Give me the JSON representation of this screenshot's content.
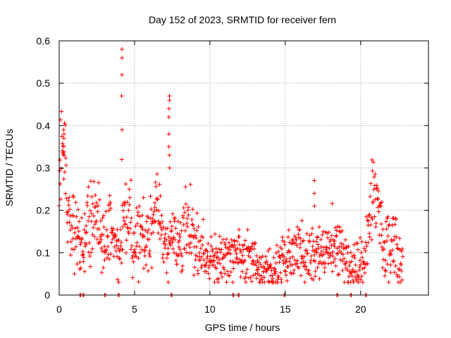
{
  "chart_data": {
    "type": "scatter",
    "title": "Day 152 of 2023, SRMTID for receiver fern",
    "xlabel": "GPS time / hours",
    "ylabel": "SRMTID / TECUs",
    "xlim": [
      0,
      24.5
    ],
    "ylim": [
      0,
      0.6
    ],
    "x_ticks": [
      0,
      5,
      10,
      15,
      20
    ],
    "x_tick_labels": [
      "0",
      "5",
      "10",
      "15",
      "20"
    ],
    "y_ticks": [
      0,
      0.1,
      0.2,
      0.3,
      0.4,
      0.5,
      0.6
    ],
    "y_tick_labels": [
      "0",
      "0.1",
      "0.2",
      "0.3",
      "0.4",
      "0.5",
      "0.6"
    ],
    "grid": true,
    "marker": "+",
    "series_color": "#ff0000",
    "trend": [
      [
        0.0,
        0.24
      ],
      [
        0.15,
        0.33
      ],
      [
        0.3,
        0.38
      ],
      [
        0.5,
        0.25
      ],
      [
        0.8,
        0.16
      ],
      [
        1.2,
        0.15
      ],
      [
        1.6,
        0.11
      ],
      [
        2.0,
        0.17
      ],
      [
        2.3,
        0.21
      ],
      [
        2.7,
        0.15
      ],
      [
        3.0,
        0.1
      ],
      [
        3.3,
        0.16
      ],
      [
        3.7,
        0.13
      ],
      [
        4.0,
        0.1
      ],
      [
        4.3,
        0.18
      ],
      [
        4.7,
        0.18
      ],
      [
        5.0,
        0.13
      ],
      [
        5.5,
        0.14
      ],
      [
        6.0,
        0.16
      ],
      [
        6.5,
        0.2
      ],
      [
        7.0,
        0.12
      ],
      [
        7.5,
        0.14
      ],
      [
        8.0,
        0.13
      ],
      [
        8.5,
        0.16
      ],
      [
        9.0,
        0.12
      ],
      [
        9.5,
        0.09
      ],
      [
        10.0,
        0.09
      ],
      [
        10.5,
        0.08
      ],
      [
        11.0,
        0.08
      ],
      [
        11.5,
        0.09
      ],
      [
        12.0,
        0.1
      ],
      [
        12.5,
        0.08
      ],
      [
        13.0,
        0.07
      ],
      [
        13.5,
        0.06
      ],
      [
        14.0,
        0.06
      ],
      [
        14.5,
        0.07
      ],
      [
        15.0,
        0.09
      ],
      [
        15.5,
        0.1
      ],
      [
        16.0,
        0.11
      ],
      [
        16.5,
        0.09
      ],
      [
        17.0,
        0.1
      ],
      [
        17.5,
        0.09
      ],
      [
        18.0,
        0.13
      ],
      [
        18.5,
        0.1
      ],
      [
        19.0,
        0.09
      ],
      [
        19.5,
        0.06
      ],
      [
        20.0,
        0.08
      ],
      [
        20.3,
        0.09
      ],
      [
        20.6,
        0.2
      ],
      [
        20.9,
        0.25
      ],
      [
        21.1,
        0.23
      ],
      [
        21.4,
        0.13
      ],
      [
        21.8,
        0.11
      ],
      [
        22.2,
        0.14
      ],
      [
        22.5,
        0.1
      ],
      [
        22.8,
        0.08
      ]
    ],
    "spikes": [
      {
        "x": 4.15,
        "values": [
          0.58,
          0.56,
          0.52,
          0.47,
          0.39,
          0.32
        ]
      },
      {
        "x": 7.3,
        "values": [
          0.47,
          0.46,
          0.44,
          0.42,
          0.38,
          0.35,
          0.33,
          0.3
        ]
      },
      {
        "x": 0.3,
        "values": [
          0.39,
          0.38,
          0.37,
          0.35,
          0.33
        ]
      },
      {
        "x": 16.95,
        "values": [
          0.27,
          0.24,
          0.21
        ]
      }
    ],
    "zero_points_x": [
      1.4,
      1.6,
      3.05,
      3.95,
      7.45,
      11.55,
      11.9,
      14.95,
      18.45,
      19.35,
      20.35
    ]
  }
}
